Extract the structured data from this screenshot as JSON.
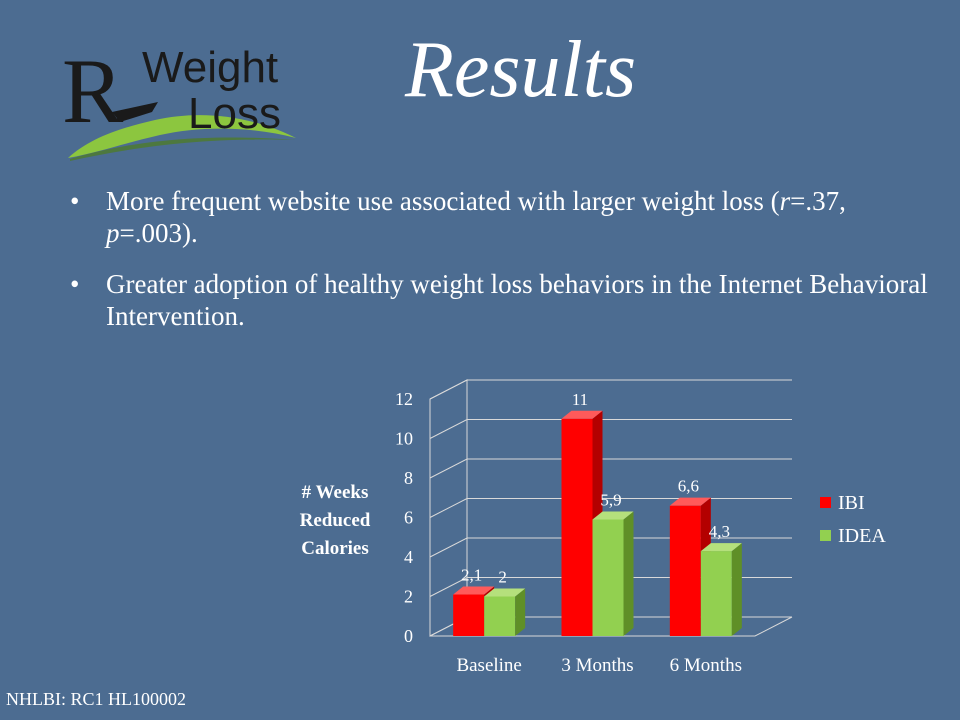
{
  "logo": {
    "letter": "R",
    "line1": "Weight",
    "line2": "Loss"
  },
  "title": "Results",
  "bullets": [
    {
      "text_before": "More frequent website use associated with larger weight loss (",
      "stat1_var": "r",
      "stat1_val": "=.37, ",
      "stat2_var": "p",
      "stat2_val": "=.003)."
    },
    {
      "text": "Greater adoption of healthy weight loss behaviors in the Internet Behavioral Intervention."
    }
  ],
  "footer": "NHLBI: RC1 HL100002",
  "colors": {
    "ibi": "#ff0000",
    "idea": "#92d050",
    "background": "#4c6c91"
  },
  "chart_data": {
    "type": "bar",
    "ylabel_lines": [
      "# Weeks",
      "Reduced",
      "Calories"
    ],
    "categories": [
      "Baseline",
      "3 Months",
      "6 Months"
    ],
    "series": [
      {
        "name": "IBI",
        "values": [
          2.1,
          11,
          6.6
        ],
        "labels": [
          "2,1",
          "11",
          "6,6"
        ]
      },
      {
        "name": "IDEA",
        "values": [
          2,
          5.9,
          4.3
        ],
        "labels": [
          "2",
          "5,9",
          "4,3"
        ]
      }
    ],
    "yticks": [
      "0",
      "2",
      "4",
      "6",
      "8",
      "10",
      "12"
    ],
    "ylim": [
      0,
      12
    ],
    "grid": true,
    "legend": "right",
    "style": "3d-clustered-column"
  }
}
